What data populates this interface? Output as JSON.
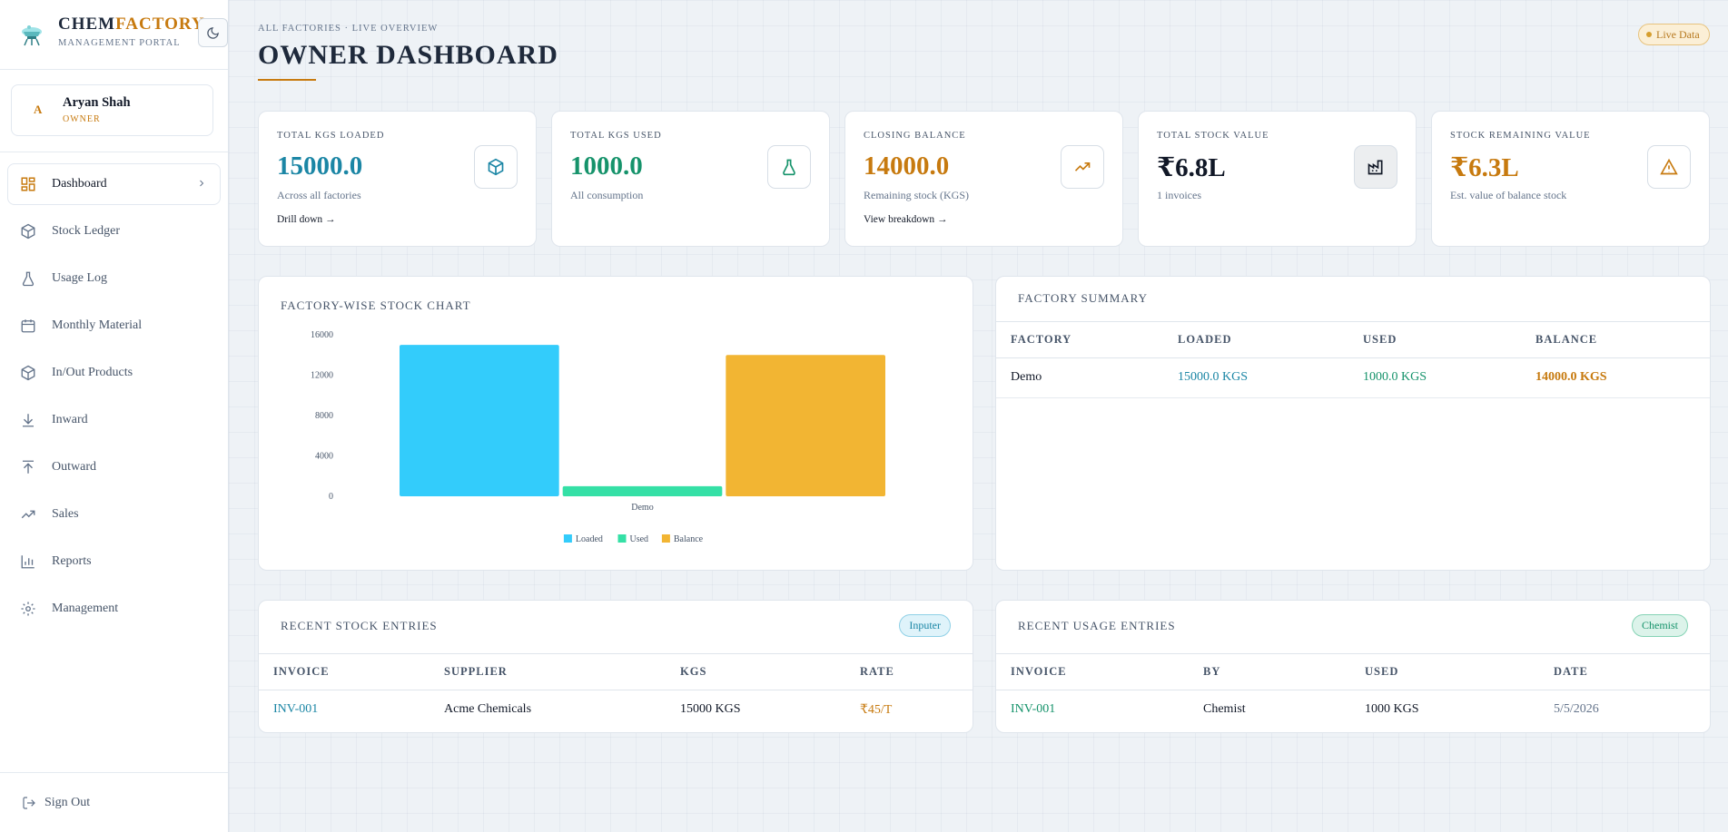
{
  "brand": {
    "name_main": "CHEM",
    "name_accent": "FACTORY",
    "subtitle": "MANAGEMENT PORTAL"
  },
  "user": {
    "initial": "A",
    "name": "Aryan Shah",
    "role": "OWNER"
  },
  "nav": {
    "items": [
      {
        "label": "Dashboard",
        "icon": "dashboard-icon",
        "active": true
      },
      {
        "label": "Stock Ledger",
        "icon": "box-icon"
      },
      {
        "label": "Usage Log",
        "icon": "flask-icon"
      },
      {
        "label": "Monthly Material",
        "icon": "calendar-icon"
      },
      {
        "label": "In/Out Products",
        "icon": "box-icon"
      },
      {
        "label": "Inward",
        "icon": "download-icon"
      },
      {
        "label": "Outward",
        "icon": "upload-icon"
      },
      {
        "label": "Sales",
        "icon": "trending-up-icon"
      },
      {
        "label": "Reports",
        "icon": "bar-chart-icon"
      },
      {
        "label": "Management",
        "icon": "gear-icon"
      }
    ],
    "sign_out": "Sign Out"
  },
  "header": {
    "kicker": "ALL FACTORIES · LIVE OVERVIEW",
    "title": "OWNER DASHBOARD",
    "live_badge": "Live Data"
  },
  "stats": [
    {
      "label": "TOTAL KGS LOADED",
      "value": "15000.0",
      "sub": "Across all factories",
      "link": "Drill down →",
      "color": "#1b86a5",
      "icon": "box-icon"
    },
    {
      "label": "TOTAL KGS USED",
      "value": "1000.0",
      "sub": "All consumption",
      "link": "",
      "color": "#16936b",
      "icon": "flask-icon"
    },
    {
      "label": "CLOSING BALANCE",
      "value": "14000.0",
      "sub": "Remaining stock (KGS)",
      "link": "View breakdown →",
      "color": "#c77a0f",
      "icon": "trending-up-icon"
    },
    {
      "label": "TOTAL STOCK VALUE",
      "value": "₹6.8L",
      "sub": "1 invoices",
      "link": "",
      "color": "#111827",
      "icon": "factory-icon"
    },
    {
      "label": "STOCK REMAINING VALUE",
      "value": "₹6.3L",
      "sub": "Est. value of balance stock",
      "link": "",
      "color": "#c77a0f",
      "icon": "alert-triangle-icon"
    }
  ],
  "chart_panel": {
    "title": "FACTORY-WISE STOCK CHART"
  },
  "chart_data": {
    "type": "bar",
    "categories": [
      "Demo"
    ],
    "series": [
      {
        "name": "Loaded",
        "values": [
          15000
        ],
        "color": "#33ccfb"
      },
      {
        "name": "Used",
        "values": [
          1000
        ],
        "color": "#35e0a6"
      },
      {
        "name": "Balance",
        "values": [
          14000
        ],
        "color": "#f2b533"
      }
    ],
    "yticks": [
      0,
      4000,
      8000,
      12000,
      16000
    ],
    "ylim": [
      0,
      16000
    ],
    "legend_position": "bottom"
  },
  "summary": {
    "title": "FACTORY SUMMARY",
    "columns": [
      "FACTORY",
      "LOADED",
      "USED",
      "BALANCE"
    ],
    "rows": [
      {
        "factory": "Demo",
        "loaded": "15000.0 KGS",
        "used": "1000.0 KGS",
        "balance": "14000.0 KGS"
      }
    ],
    "colors": {
      "loaded": "#1b86a5",
      "used": "#16936b",
      "balance": "#c77a0f"
    }
  },
  "recent_stock": {
    "title": "RECENT STOCK ENTRIES",
    "tag": "Inputer",
    "columns": [
      "INVOICE",
      "SUPPLIER",
      "KGS",
      "RATE"
    ],
    "rows": [
      {
        "invoice": "INV-001",
        "supplier": "Acme Chemicals",
        "kgs": "15000 KGS",
        "rate": "₹45/T"
      }
    ]
  },
  "recent_usage": {
    "title": "RECENT USAGE ENTRIES",
    "tag": "Chemist",
    "columns": [
      "INVOICE",
      "BY",
      "USED",
      "DATE"
    ],
    "rows": [
      {
        "invoice": "INV-001",
        "by": "Chemist",
        "used": "1000 KGS",
        "date": "5/5/2026"
      }
    ]
  }
}
